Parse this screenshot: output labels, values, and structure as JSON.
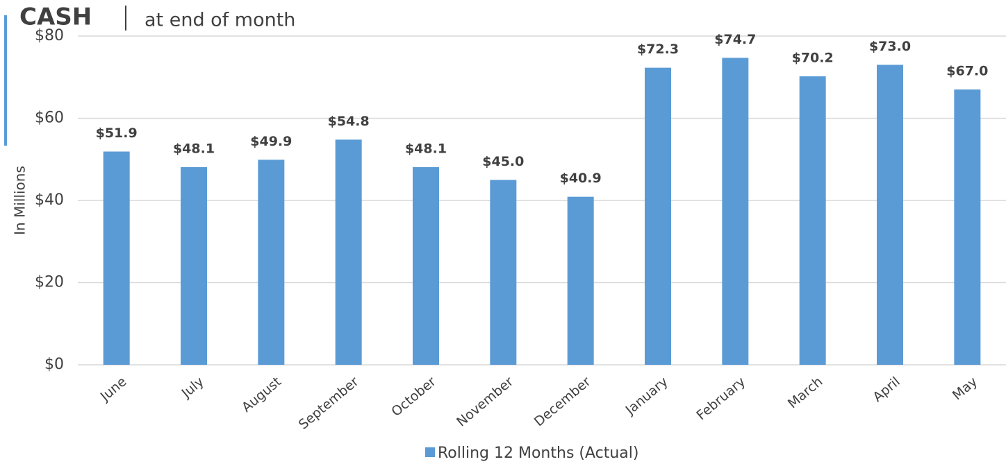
{
  "chart_data": {
    "type": "bar",
    "title": "CASH",
    "subtitle": "at end of month",
    "y_label": "In Millions",
    "categories": [
      "June",
      "July",
      "August",
      "September",
      "October",
      "November",
      "December",
      "January",
      "February",
      "March",
      "April",
      "May"
    ],
    "series": [
      {
        "name": "Rolling 12 Months (Actual)",
        "color": "#5b9bd5",
        "values": [
          51.9,
          48.1,
          49.9,
          54.8,
          48.1,
          45.0,
          40.9,
          72.3,
          74.7,
          70.2,
          73.0,
          67.0
        ],
        "value_labels": [
          "$51.9",
          "$48.1",
          "$49.9",
          "$54.8",
          "$48.1",
          "$45.0",
          "$40.9",
          "$72.3",
          "$74.7",
          "$70.2",
          "$73.0",
          "$67.0"
        ]
      }
    ],
    "ylim": [
      0,
      80
    ],
    "yticks": [
      {
        "value": 0,
        "label": "$0"
      },
      {
        "value": 20,
        "label": "$20"
      },
      {
        "value": 40,
        "label": "$40"
      },
      {
        "value": 60,
        "label": "$60"
      },
      {
        "value": 80,
        "label": "$80"
      }
    ],
    "grid": true,
    "legend": "bottom"
  }
}
